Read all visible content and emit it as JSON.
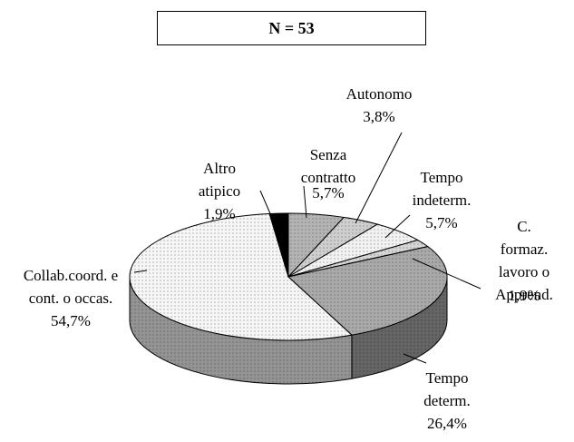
{
  "chart_data": {
    "type": "pie",
    "title": "N = 53",
    "categories": [
      "Senza\ncontratto",
      "Autonomo",
      "Tempo\nindeterm.",
      "C. formaz.\nlavoro o\nApprend.",
      "Tempo\ndeterm.",
      "Collab.coord. e\ncont. o occas.",
      "Altro\natipico"
    ],
    "values": [
      5.7,
      3.8,
      5.7,
      1.9,
      26.4,
      54.7,
      1.9
    ],
    "value_labels": [
      "5,7%",
      "3,8%",
      "5,7%",
      "1,9%",
      "26,4%",
      "54,7%",
      "1,9%"
    ],
    "colors": [
      "#b4b4b4",
      "#cfcfcf",
      "#f2f2f2",
      "#d6d6d6",
      "#a9a9a9",
      "#f6f6f6",
      "#000000"
    ]
  }
}
